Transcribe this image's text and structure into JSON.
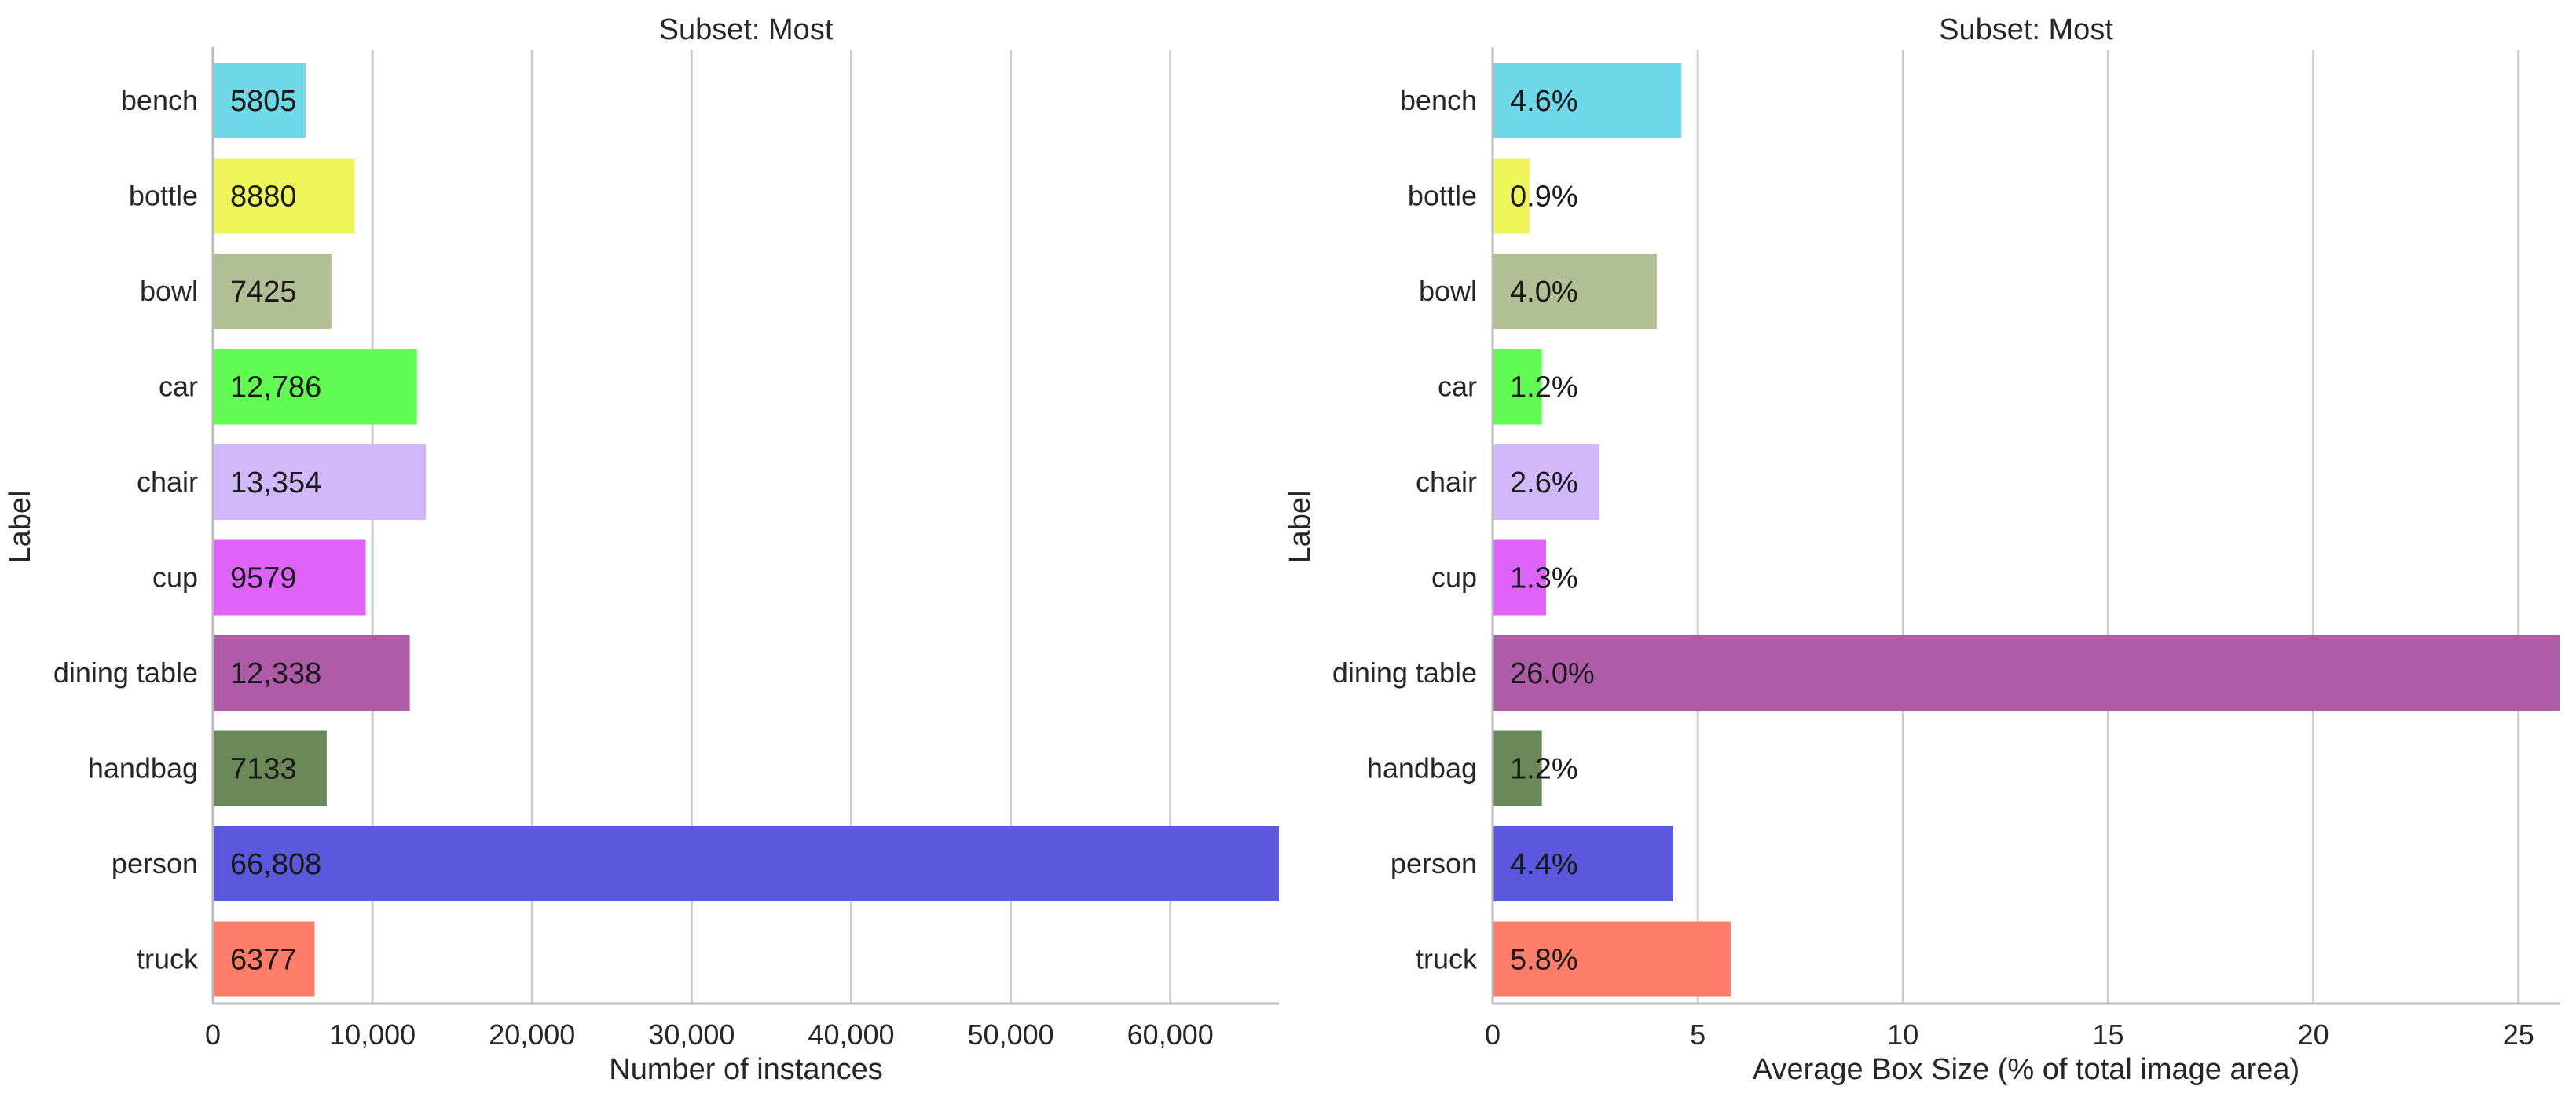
{
  "chart_data": [
    {
      "type": "bar",
      "orientation": "horizontal",
      "title": "Subset: Most",
      "xlabel": "Number of instances",
      "ylabel": "Label",
      "categories": [
        "bench",
        "bottle",
        "bowl",
        "car",
        "chair",
        "cup",
        "dining table",
        "handbag",
        "person",
        "truck"
      ],
      "values": [
        5805,
        8880,
        7425,
        12786,
        13354,
        9579,
        12338,
        7133,
        66808,
        6377
      ],
      "value_labels": [
        "5805",
        "8880",
        "7425",
        "12,786",
        "13,354",
        "9579",
        "12,338",
        "7133",
        "66,808",
        "6377"
      ],
      "xlim": [
        0,
        66808
      ],
      "xticks": [
        0,
        10000,
        20000,
        30000,
        40000,
        50000,
        60000
      ],
      "xtick_labels": [
        "0",
        "10,000",
        "20,000",
        "30,000",
        "40,000",
        "50,000",
        "60,000"
      ],
      "grid": "vertical"
    },
    {
      "type": "bar",
      "orientation": "horizontal",
      "title": "Subset: Most",
      "xlabel": "Average Box Size (% of total image area)",
      "ylabel": "Label",
      "categories": [
        "bench",
        "bottle",
        "bowl",
        "car",
        "chair",
        "cup",
        "dining table",
        "handbag",
        "person",
        "truck"
      ],
      "values": [
        4.6,
        0.9,
        4.0,
        1.2,
        2.6,
        1.3,
        26.0,
        1.2,
        4.4,
        5.8
      ],
      "value_labels": [
        "4.6%",
        "0.9%",
        "4.0%",
        "1.2%",
        "2.6%",
        "1.3%",
        "26.0%",
        "1.2%",
        "4.4%",
        "5.8%"
      ],
      "xlim": [
        0,
        26.0
      ],
      "xticks": [
        0,
        5,
        10,
        15,
        20,
        25
      ],
      "xtick_labels": [
        "0",
        "5",
        "10",
        "15",
        "20",
        "25"
      ],
      "grid": "vertical"
    }
  ],
  "colors": [
    "#6fd8e8",
    "#eff55b",
    "#b2bf94",
    "#62fb53",
    "#d1b8fb",
    "#df62fb",
    "#af5ca8",
    "#6b8958",
    "#5a58dc",
    "#fd7d6a"
  ]
}
